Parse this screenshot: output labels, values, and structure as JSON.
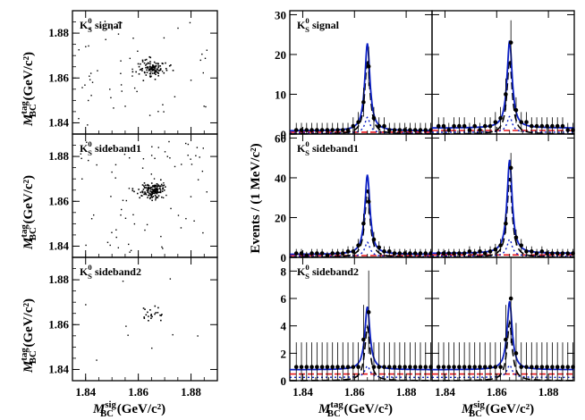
{
  "chart_data": [
    {
      "type": "scatter",
      "panel": "scatter",
      "rows": [
        {
          "label_main": "K",
          "label_sup": "0",
          "label_sub": "S",
          "label_tail": " signal"
        },
        {
          "label_main": "K",
          "label_sup": "0",
          "label_sub": "S",
          "label_tail": " sideband1"
        },
        {
          "label_main": "K",
          "label_sup": "0",
          "label_sub": "S",
          "label_tail": " sideband2"
        }
      ],
      "xlim": [
        1.835,
        1.89
      ],
      "ylim": [
        1.835,
        1.89
      ],
      "xticks": [
        "1.84",
        "1.86",
        "1.88"
      ],
      "yticks": [
        "1.84",
        "1.86",
        "1.88"
      ],
      "xlabel": {
        "main": "M",
        "sup": "sig",
        "sub": "BC",
        "unit": " (GeV/c²)"
      },
      "ylabel": {
        "main": "M",
        "sup": "tag",
        "sub": "BC",
        "unit": " (GeV/c²)"
      },
      "clusters": [
        {
          "n_core": 110,
          "core_sigma": 0.0035,
          "n_bg": 55
        },
        {
          "n_core": 140,
          "core_sigma": 0.003,
          "n_bg": 75
        },
        {
          "n_core": 22,
          "core_sigma": 0.0025,
          "n_bg": 9
        }
      ],
      "peak": [
        1.865,
        1.865
      ]
    },
    {
      "type": "line",
      "panel": "fits",
      "ylabel": "Events / (1 MeV/c²)",
      "xlim": [
        1.835,
        1.89
      ],
      "xticks": [
        "1.84",
        "1.86",
        "1.88"
      ],
      "xlabel": {
        "main": "M",
        "sup": "tag",
        "sub": "BC",
        "unit": " (GeV/c²)"
      },
      "xlabel_right": {
        "main": "M",
        "sup": "sig",
        "sub": "BC",
        "unit": " (GeV/c²)"
      },
      "rows": [
        {
          "ylim": [
            0,
            31
          ],
          "yticks": [
            0,
            10,
            20,
            30
          ],
          "label_tail": " signal",
          "left": {
            "peak": 22,
            "bg": 0.8
          },
          "right": {
            "peak": 22,
            "bg": 1.5
          }
        },
        {
          "ylim": [
            0,
            62
          ],
          "yticks": [
            0,
            20,
            40,
            60
          ],
          "label_tail": " sideband1",
          "left": {
            "peak": 40,
            "bg": 1.5
          },
          "right": {
            "peak": 47,
            "bg": 2.0
          }
        },
        {
          "ylim": [
            0,
            9
          ],
          "yticks": [
            0,
            2,
            4,
            6,
            8
          ],
          "label_tail": " sideband2",
          "left": {
            "peak": 4.6,
            "bg": 0.8
          },
          "right": {
            "peak": 5.0,
            "bg": 0.8
          }
        }
      ],
      "label_main": "K",
      "label_sup": "0",
      "label_sub": "S",
      "colors": {
        "total": "#0b1fc4",
        "signal": "#000000",
        "peaking": "#0b1fc4",
        "background": "#e8161b",
        "data": "#000000"
      }
    }
  ]
}
